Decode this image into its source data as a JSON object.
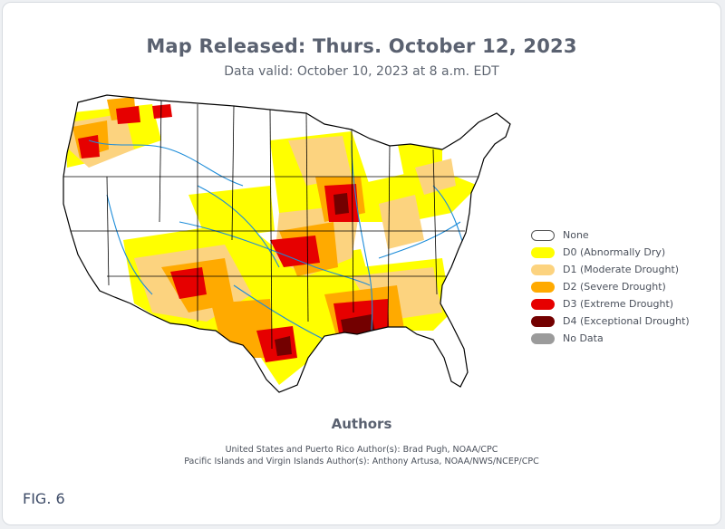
{
  "header": {
    "title": "Map Released: Thurs. October 12, 2023",
    "subtitle": "Data valid: October 10, 2023 at 8 a.m. EDT"
  },
  "legend": {
    "items": [
      {
        "label": "None",
        "color": "#ffffff"
      },
      {
        "label": "D0 (Abnormally Dry)",
        "color": "#ffff00"
      },
      {
        "label": "D1 (Moderate Drought)",
        "color": "#fcd37f"
      },
      {
        "label": "D2 (Severe Drought)",
        "color": "#ffaa00"
      },
      {
        "label": "D3 (Extreme Drought)",
        "color": "#e60000"
      },
      {
        "label": "D4 (Exceptional Drought)",
        "color": "#730000"
      },
      {
        "label": "No Data",
        "color": "#9b9b9b"
      }
    ]
  },
  "authors": {
    "heading": "Authors",
    "line1": "United States and Puerto Rico Author(s): Brad Pugh, NOAA/CPC",
    "line2": "Pacific Islands and Virgin Islands Author(s): Anthony Artusa, NOAA/NWS/NCEP/CPC"
  },
  "figure_label": "FIG. 6"
}
